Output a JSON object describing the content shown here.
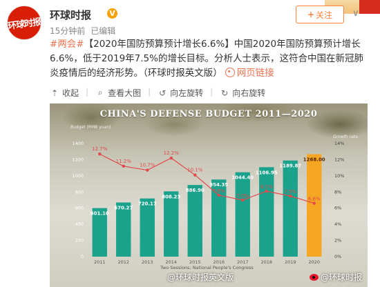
{
  "user": {
    "name": "环球时报",
    "avatar_text": "环球时报",
    "verified_mark": "V",
    "time": "15分钟前",
    "status": "已编辑",
    "follow_label": "关注"
  },
  "post": {
    "hashtag": "#两会#",
    "text": "【2020年国防预算预计增长6.6%】中国2020年国防预算预计增长6.6%，低于2019年7.5%的增长目标。分析人士表示，这符合中国在新冠肺炎疫情后的经济形势。（环球时报英文版）",
    "link_label": "网页链接"
  },
  "toolbar": {
    "items": [
      {
        "label": "收起",
        "icon": "collapse-icon"
      },
      {
        "label": "查看大图",
        "icon": "zoom-icon"
      },
      {
        "label": "向左旋转",
        "icon": "rotate-left-icon"
      },
      {
        "label": "向右旋转",
        "icon": "rotate-right-icon"
      }
    ]
  },
  "watermark": {
    "left": "@环球时报英文版",
    "right": "@环球时报"
  },
  "colors": {
    "accent": "#eb7350",
    "bar_green": "#1ba28c",
    "bar_highlight": "#f5a623",
    "line_red": "#e2484c"
  },
  "chart_data": {
    "type": "bar",
    "title": "CHINA'S DEFENSE BUDGET 2011—2020",
    "ylabel": "Budget (RMB yuan)",
    "y2label": "Growth rate",
    "ylim": [
      0,
      1400
    ],
    "y2lim": [
      0,
      14
    ],
    "yticks": [
      0,
      200,
      400,
      600,
      800,
      1000,
      1200,
      1400
    ],
    "y2ticks": [
      "0%",
      "2%",
      "4%",
      "6%",
      "8%",
      "10%",
      "12%",
      "14%"
    ],
    "categories": [
      "2011",
      "2012",
      "2013",
      "2014",
      "2015",
      "2016",
      "2017",
      "2018",
      "2019",
      "2020"
    ],
    "series": [
      {
        "values": [
          601.1,
          670.27,
          720.17,
          808.23,
          886.9,
          954.35,
          1044.4,
          1106.95,
          1189.87,
          1268.0
        ],
        "labels": [
          "601.10",
          "670.27",
          "720.17",
          "808.23",
          "886.90",
          "954.35",
          "1044.40",
          "1106.95",
          "1189.87",
          "1268.00"
        ]
      },
      {
        "values": [
          12.7,
          11.2,
          10.7,
          12.2,
          10.1,
          7.6,
          7.0,
          8.1,
          7.5,
          6.6
        ],
        "labels": [
          "12.7%",
          "11.2%",
          "10.7%",
          "12.2%",
          "10.1%",
          "7.6%",
          "7.0%",
          "8.1%",
          "7.5%",
          "6.6%"
        ]
      }
    ],
    "source": "Two Sessions; National People's Congress",
    "legend": "none",
    "grid": false
  }
}
